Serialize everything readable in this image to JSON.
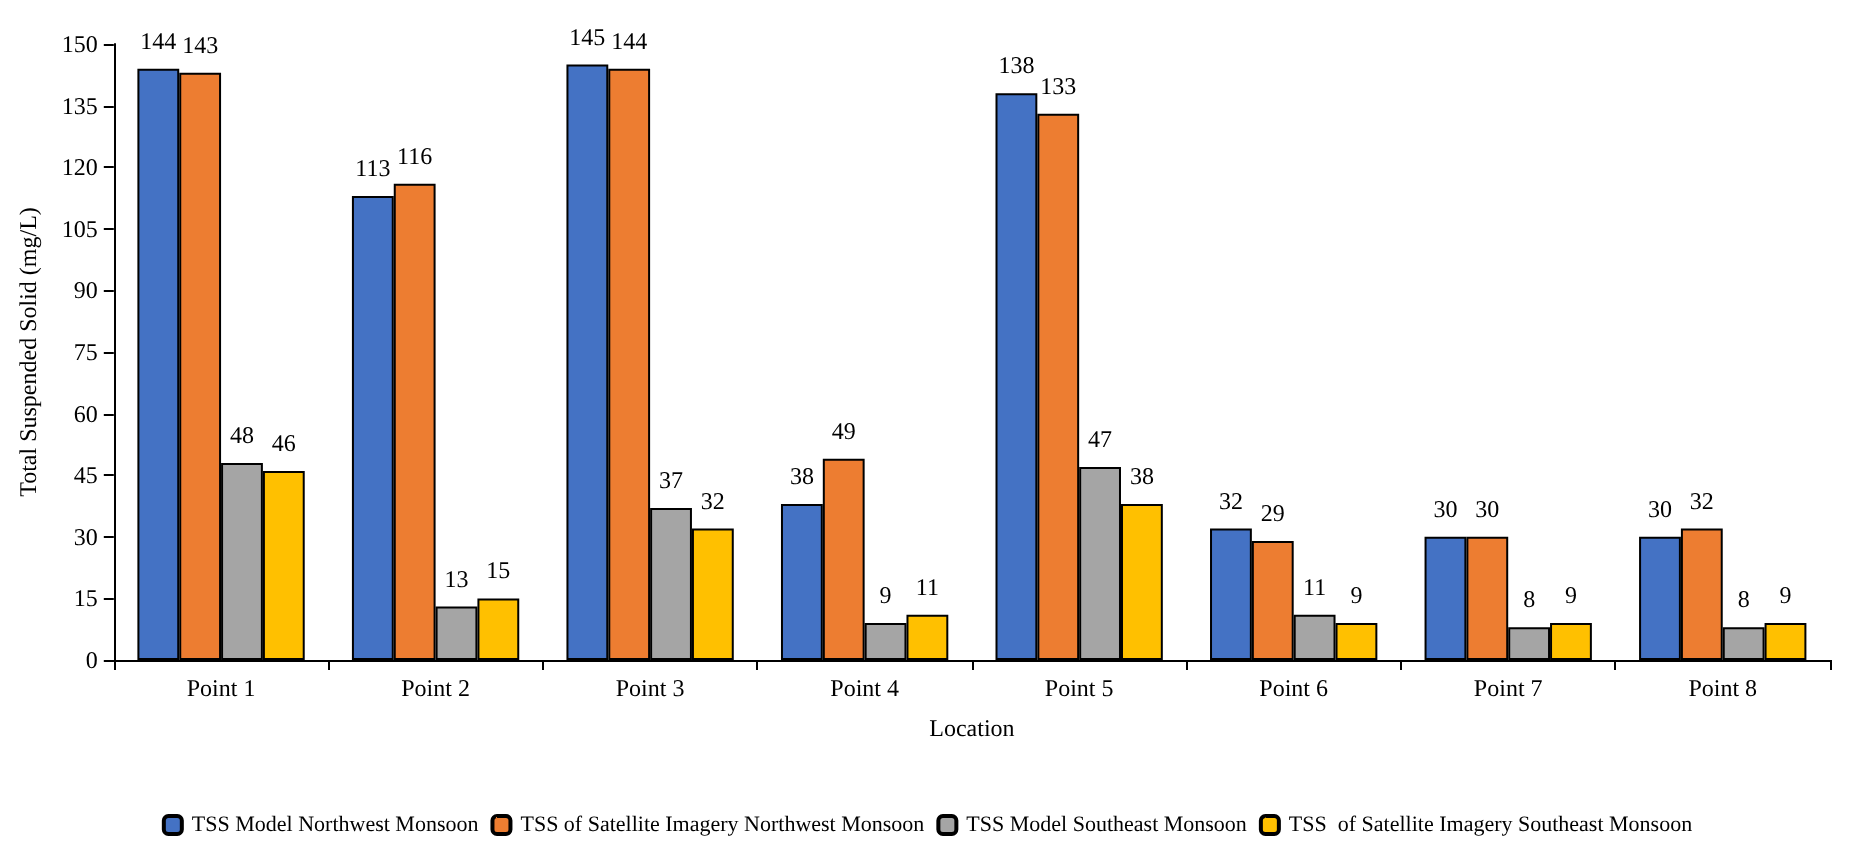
{
  "chart_data": {
    "type": "bar",
    "xlabel": "Location",
    "ylabel": "Total Suspended Solid (mg/L)",
    "categories": [
      "Point 1",
      "Point 2",
      "Point 3",
      "Point 4",
      "Point 5",
      "Point 6",
      "Point 7",
      "Point 8"
    ],
    "series": [
      {
        "name": "TSS Model Northwest Monsoon",
        "color": "#4472c4",
        "values": [
          144,
          113,
          145,
          38,
          138,
          32,
          30,
          30
        ]
      },
      {
        "name": "TSS of Satellite Imagery Northwest Monsoon",
        "color": "#ed7d31",
        "values": [
          143,
          116,
          144,
          49,
          133,
          29,
          30,
          32
        ]
      },
      {
        "name": "TSS Model Southeast Monsoon",
        "color": "#a5a5a5",
        "values": [
          48,
          13,
          37,
          9,
          47,
          11,
          8,
          8
        ]
      },
      {
        "name": "TSS  of Satellite Imagery Southeast Monsoon",
        "color": "#ffc000",
        "values": [
          46,
          15,
          32,
          11,
          38,
          9,
          9,
          9
        ]
      }
    ],
    "ylim": [
      0,
      150
    ],
    "yticks": [
      0,
      15,
      30,
      45,
      60,
      75,
      90,
      105,
      120,
      135,
      150
    ],
    "data_labels": true,
    "grid": false,
    "legend": "bottom"
  }
}
